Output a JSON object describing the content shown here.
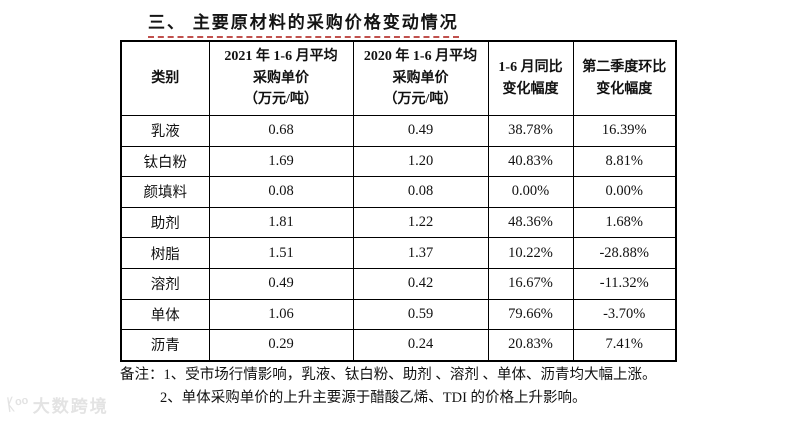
{
  "section": {
    "title": "三、 主要原材料的采购价格变动情况",
    "underline_color": "#c0504d"
  },
  "table": {
    "headers": [
      "类别",
      "2021 年 1-6 月平均\n采购单价\n（万元/吨）",
      "2020 年 1-6 月平均\n采购单价\n（万元/吨）",
      "1-6 月同比\n变化幅度",
      "第二季度环比\n变化幅度"
    ],
    "rows": [
      [
        "乳液",
        "0.68",
        "0.49",
        "38.78%",
        "16.39%"
      ],
      [
        "钛白粉",
        "1.69",
        "1.20",
        "40.83%",
        "8.81%"
      ],
      [
        "颜填料",
        "0.08",
        "0.08",
        "0.00%",
        "0.00%"
      ],
      [
        "助剂",
        "1.81",
        "1.22",
        "48.36%",
        "1.68%"
      ],
      [
        "树脂",
        "1.51",
        "1.37",
        "10.22%",
        "-28.88%"
      ],
      [
        "溶剂",
        "0.49",
        "0.42",
        "16.67%",
        "-11.32%"
      ],
      [
        "单体",
        "1.06",
        "0.59",
        "79.66%",
        "-3.70%"
      ],
      [
        "沥青",
        "0.29",
        "0.24",
        "20.83%",
        "7.41%"
      ]
    ],
    "border_color": "#000000"
  },
  "notes": {
    "line1": "备注：1、受市场行情影响，乳液、钛白粉、助剂 、溶剂 、单体、沥青均大幅上涨。",
    "line2": "2、单体采购单价的上升主要源于醋酸乙烯、TDI 的价格上升影响。"
  },
  "watermark": {
    "logo": "ᛕᵒᵒ",
    "text": "大数跨境",
    "color": "#e3e3e3"
  }
}
